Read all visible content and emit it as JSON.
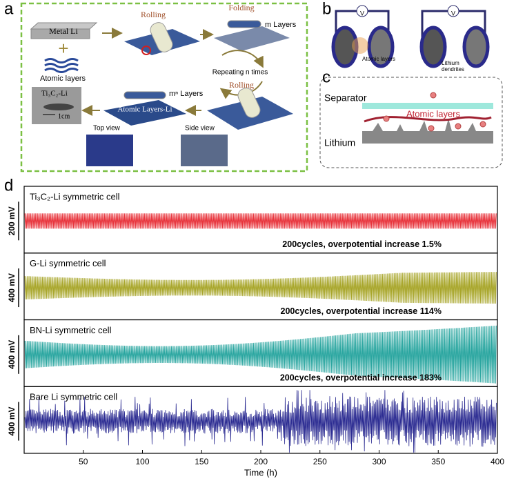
{
  "panel_labels": [
    "a",
    "b",
    "c",
    "d"
  ],
  "panel_a": {
    "metal": "Metal Li",
    "plus": "+",
    "atomic_layers": "Atomic layers",
    "rolling_1": "Rolling",
    "folding": "Folding",
    "m_layers": "m Layers",
    "repeating": "Repeating n times",
    "rolling_2": "Rolling",
    "mn_layers": "mⁿ Layers",
    "product": "Atomic Layers-Li",
    "photo_label": "Ti₃C₂-Li",
    "scale": "1cm",
    "top_view": "Top view",
    "side_view": "Side view"
  },
  "panel_b": {
    "meter_1": "V",
    "meter_2": "V",
    "atomic_layers": "Atomic layers",
    "dendrites": [
      "Lithium",
      "dendrites"
    ]
  },
  "panel_c": {
    "separator": "Separator",
    "atomic_layers": "Atomic layers",
    "lithium": "Lithium"
  },
  "panel_d": {
    "x_label": "Time (h)",
    "xlim": [
      0,
      400
    ],
    "xticks": [
      50,
      100,
      150,
      200,
      250,
      300,
      350,
      400
    ],
    "cells": [
      {
        "name": "Ti₃C₂-Li symmetric cell",
        "scale": "200 mV",
        "note": "200cycles, overpotential increase 1.5%"
      },
      {
        "name": "G-Li symmetric cell",
        "scale": "400 mV",
        "note": "200cycles, overpotential increase 114%"
      },
      {
        "name": "BN-Li symmetric cell",
        "scale": "400 mV",
        "note": "200cycles, overpotential increase 183%"
      },
      {
        "name": "Bare Li symmetric cell",
        "scale": "400 mV"
      }
    ]
  }
}
